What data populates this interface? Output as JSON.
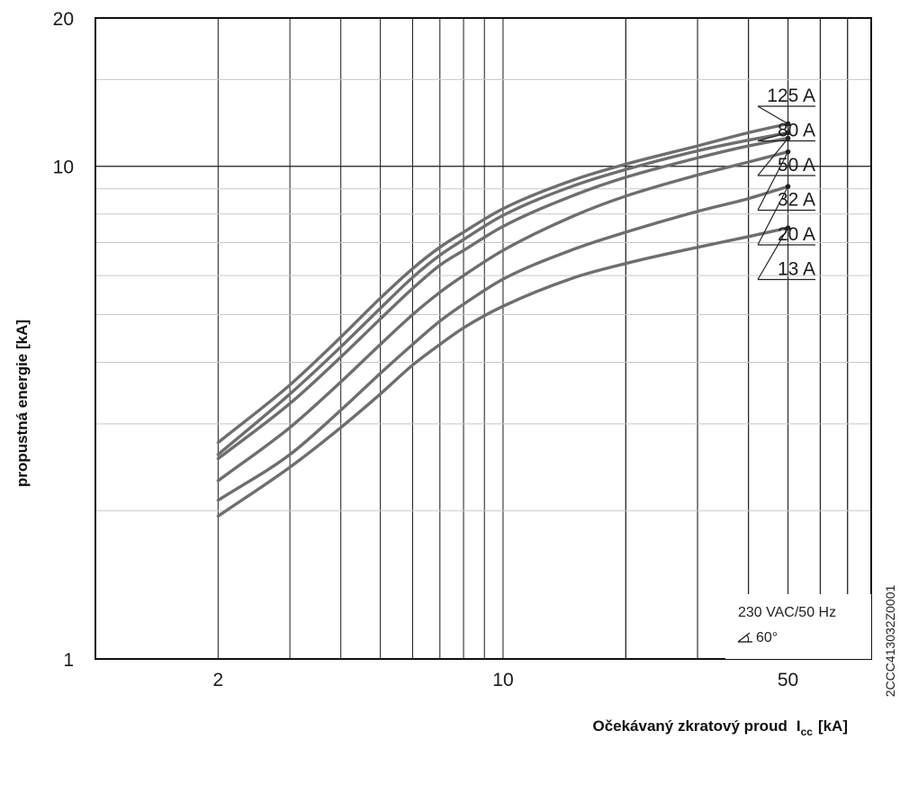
{
  "chart_data": {
    "type": "line",
    "xlabel": "Očekávaný zkratový proud",
    "xlabel_symbol": "I",
    "xlabel_subscript": "cc",
    "xlabel_unit": "[kA]",
    "ylabel": "propustná energie [kA]",
    "x_scale": "log",
    "y_scale": "log",
    "xlim": [
      1,
      80
    ],
    "ylim": [
      1,
      20
    ],
    "x_ticks": [
      "2",
      "10",
      "50"
    ],
    "y_ticks": [
      "1",
      "10",
      "20"
    ],
    "grid": true,
    "series": [
      {
        "name": "125 A",
        "points": [
          [
            2,
            2.75
          ],
          [
            3,
            3.6
          ],
          [
            4,
            4.5
          ],
          [
            5,
            5.4
          ],
          [
            6,
            6.2
          ],
          [
            7,
            6.85
          ],
          [
            8,
            7.35
          ],
          [
            10,
            8.2
          ],
          [
            15,
            9.4
          ],
          [
            20,
            10.1
          ],
          [
            30,
            11.0
          ],
          [
            40,
            11.7
          ],
          [
            50,
            12.2
          ]
        ]
      },
      {
        "name": "80 A",
        "points": [
          [
            2,
            2.6
          ],
          [
            3,
            3.45
          ],
          [
            4,
            4.3
          ],
          [
            5,
            5.15
          ],
          [
            6,
            5.95
          ],
          [
            7,
            6.6
          ],
          [
            8,
            7.1
          ],
          [
            10,
            7.95
          ],
          [
            15,
            9.15
          ],
          [
            20,
            9.85
          ],
          [
            30,
            10.75
          ],
          [
            40,
            11.3
          ],
          [
            50,
            11.7
          ]
        ]
      },
      {
        "name": "50 A",
        "points": [
          [
            2,
            2.55
          ],
          [
            3,
            3.3
          ],
          [
            4,
            4.1
          ],
          [
            5,
            4.9
          ],
          [
            6,
            5.65
          ],
          [
            7,
            6.3
          ],
          [
            8,
            6.75
          ],
          [
            10,
            7.55
          ],
          [
            15,
            8.75
          ],
          [
            20,
            9.5
          ],
          [
            30,
            10.4
          ],
          [
            40,
            11.0
          ],
          [
            50,
            11.4
          ]
        ]
      },
      {
        "name": "32 A",
        "points": [
          [
            2,
            2.3
          ],
          [
            3,
            2.95
          ],
          [
            4,
            3.65
          ],
          [
            5,
            4.35
          ],
          [
            6,
            5.0
          ],
          [
            7,
            5.55
          ],
          [
            8,
            6.0
          ],
          [
            10,
            6.75
          ],
          [
            15,
            7.95
          ],
          [
            20,
            8.7
          ],
          [
            30,
            9.6
          ],
          [
            40,
            10.2
          ],
          [
            50,
            10.7
          ]
        ]
      },
      {
        "name": "20 A",
        "points": [
          [
            2,
            2.1
          ],
          [
            3,
            2.6
          ],
          [
            4,
            3.2
          ],
          [
            5,
            3.8
          ],
          [
            6,
            4.35
          ],
          [
            7,
            4.85
          ],
          [
            8,
            5.25
          ],
          [
            10,
            5.9
          ],
          [
            15,
            6.8
          ],
          [
            20,
            7.35
          ],
          [
            30,
            8.1
          ],
          [
            40,
            8.6
          ],
          [
            50,
            9.1
          ]
        ]
      },
      {
        "name": "13 A",
        "points": [
          [
            2,
            1.95
          ],
          [
            3,
            2.45
          ],
          [
            4,
            2.95
          ],
          [
            5,
            3.45
          ],
          [
            6,
            3.95
          ],
          [
            7,
            4.35
          ],
          [
            8,
            4.7
          ],
          [
            10,
            5.2
          ],
          [
            15,
            5.95
          ],
          [
            20,
            6.35
          ],
          [
            30,
            6.85
          ],
          [
            40,
            7.2
          ],
          [
            50,
            7.5
          ]
        ]
      }
    ],
    "annotations": {
      "conditions_line1": "230 VAC/50 Hz",
      "conditions_line2": "60°",
      "figure_code": "2CCC413032Z0001"
    }
  },
  "colors": {
    "curve": "#6e6e6e",
    "major_grid": "#1a1a1a",
    "minor_grid": "#c8c8c8",
    "frame": "#111111"
  },
  "icons": {
    "angle_symbol": "angle-icon"
  }
}
